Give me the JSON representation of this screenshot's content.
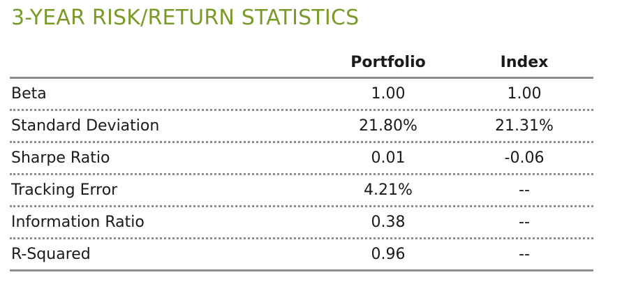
{
  "title": "3-YEAR RISK/RETURN STATISTICS",
  "columns": {
    "portfolio": "Portfolio",
    "index": "Index"
  },
  "rows": [
    {
      "label": "Beta",
      "portfolio": "1.00",
      "index": "1.00"
    },
    {
      "label": "Standard Deviation",
      "portfolio": "21.80%",
      "index": "21.31%"
    },
    {
      "label": "Sharpe Ratio",
      "portfolio": "0.01",
      "index": "-0.06"
    },
    {
      "label": "Tracking Error",
      "portfolio": "4.21%",
      "index": "--"
    },
    {
      "label": "Information Ratio",
      "portfolio": "0.38",
      "index": "--"
    },
    {
      "label": "R-Squared",
      "portfolio": "0.96",
      "index": "--"
    }
  ],
  "colors": {
    "title": "#7a9a2a",
    "rule": "#8e8e8e"
  }
}
